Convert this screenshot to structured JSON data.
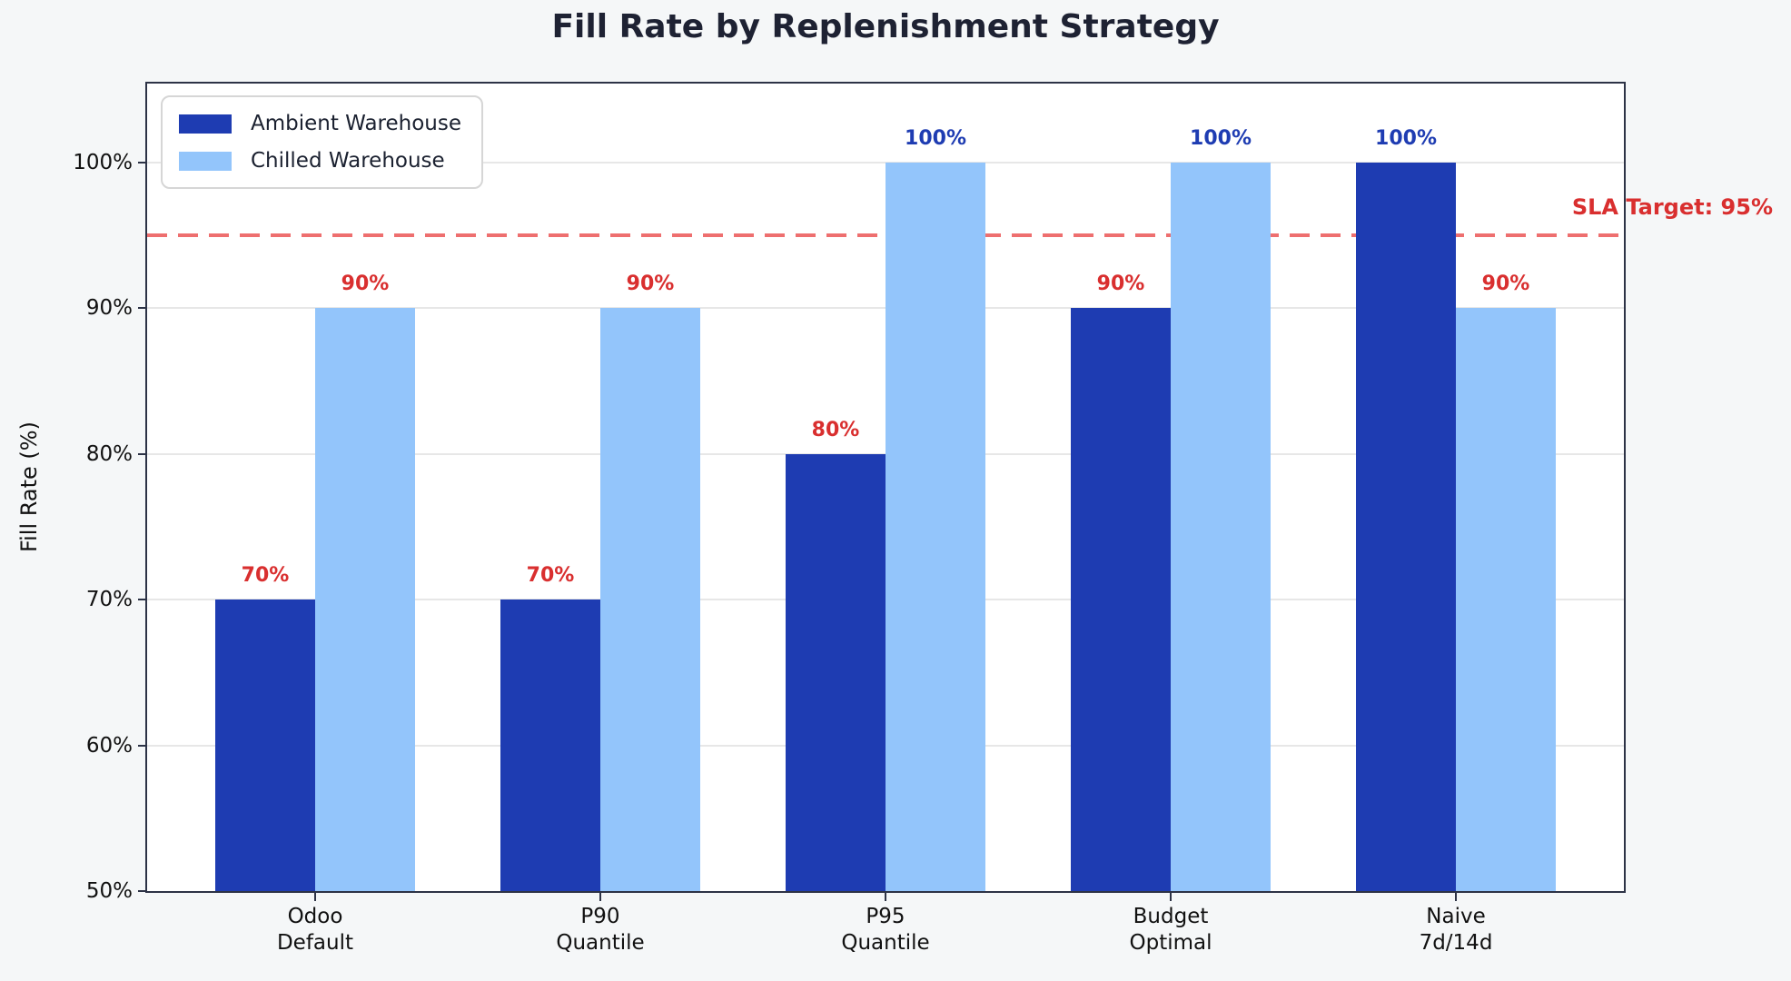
{
  "chart_data": {
    "type": "bar",
    "title": "Fill Rate by Replenishment Strategy",
    "ylabel": "Fill Rate (%)",
    "categories": [
      "Odoo\nDefault",
      "P90\nQuantile",
      "P95\nQuantile",
      "Budget\nOptimal",
      "Naive\n7d/14d"
    ],
    "series": [
      {
        "name": "Ambient Warehouse",
        "color": "#1e3cb2",
        "values": [
          70,
          70,
          80,
          90,
          100
        ]
      },
      {
        "name": "Chilled Warehouse",
        "color": "#93c5fb",
        "values": [
          90,
          90,
          100,
          100,
          90
        ]
      }
    ],
    "ylim": [
      50,
      105.4
    ],
    "yticks": [
      50,
      60,
      70,
      80,
      90,
      100
    ],
    "ytick_suffix": "%",
    "grid": true,
    "legend_position": "upper-left",
    "bar_labels": true,
    "bar_label_threshold": 95,
    "bar_label_colors": {
      "meets": "#1e3cb2",
      "below": "#d92f2f"
    },
    "target_line": {
      "value": 95,
      "label": "SLA Target: 95%",
      "style": "dashed",
      "line_color": "#ee6f6f",
      "label_color": "#d92f2f"
    }
  }
}
